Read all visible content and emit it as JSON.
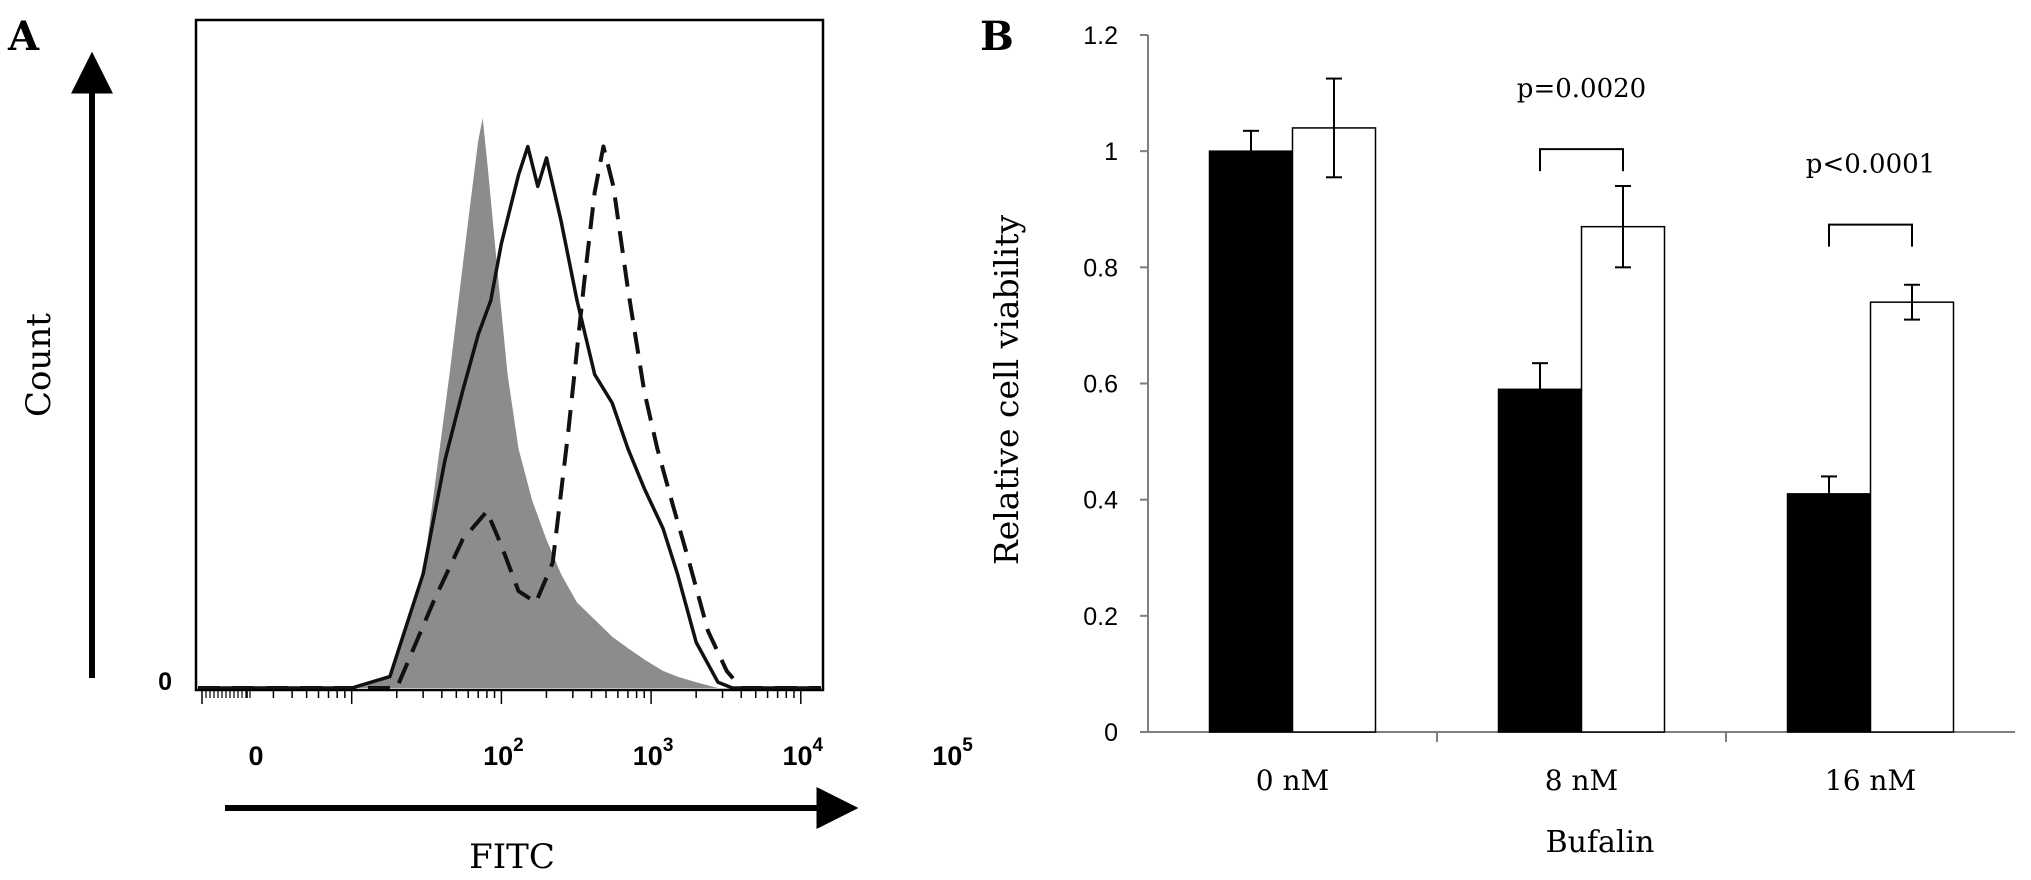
{
  "chart_data": [
    {
      "panel": "A",
      "type": "area",
      "xlabel": "FITC",
      "ylabel": "Count",
      "x_scale": "log",
      "x_ticks": [
        {
          "value": 1,
          "label": "0"
        },
        {
          "value": 100,
          "label": "10",
          "exp": "2"
        },
        {
          "value": 1000,
          "label": "10",
          "exp": "3"
        },
        {
          "value": 10000,
          "label": "10",
          "exp": "4"
        },
        {
          "value": 100000,
          "label": "10",
          "exp": "5"
        }
      ],
      "y_ticks": [
        {
          "value": 0,
          "label": "0"
        }
      ],
      "ylim": [
        0,
        1
      ],
      "series": [
        {
          "style": "filled-gray",
          "color": "#8c8c8c",
          "points": [
            [
              10,
              0
            ],
            [
              18,
              0.02
            ],
            [
              30,
              0.2
            ],
            [
              45,
              0.55
            ],
            [
              60,
              0.82
            ],
            [
              70,
              0.96
            ],
            [
              75,
              1.0
            ],
            [
              82,
              0.9
            ],
            [
              95,
              0.72
            ],
            [
              110,
              0.55
            ],
            [
              130,
              0.42
            ],
            [
              160,
              0.33
            ],
            [
              200,
              0.26
            ],
            [
              250,
              0.2
            ],
            [
              320,
              0.15
            ],
            [
              420,
              0.12
            ],
            [
              550,
              0.09
            ],
            [
              700,
              0.07
            ],
            [
              900,
              0.05
            ],
            [
              1200,
              0.03
            ],
            [
              1500,
              0.02
            ],
            [
              2000,
              0.01
            ],
            [
              2800,
              0
            ]
          ]
        },
        {
          "style": "solid-line",
          "color": "#111111",
          "points": [
            [
              10,
              0
            ],
            [
              18,
              0.02
            ],
            [
              30,
              0.2
            ],
            [
              42,
              0.4
            ],
            [
              55,
              0.52
            ],
            [
              70,
              0.62
            ],
            [
              85,
              0.68
            ],
            [
              100,
              0.78
            ],
            [
              130,
              0.9
            ],
            [
              150,
              0.95
            ],
            [
              175,
              0.88
            ],
            [
              200,
              0.93
            ],
            [
              250,
              0.82
            ],
            [
              320,
              0.68
            ],
            [
              420,
              0.55
            ],
            [
              550,
              0.5
            ],
            [
              700,
              0.42
            ],
            [
              900,
              0.35
            ],
            [
              1200,
              0.28
            ],
            [
              1500,
              0.2
            ],
            [
              2000,
              0.08
            ],
            [
              2800,
              0.01
            ],
            [
              3500,
              0
            ]
          ]
        },
        {
          "style": "dashed-line",
          "color": "#111111",
          "points": [
            [
              20,
              0
            ],
            [
              35,
              0.15
            ],
            [
              55,
              0.26
            ],
            [
              80,
              0.31
            ],
            [
              100,
              0.25
            ],
            [
              130,
              0.17
            ],
            [
              170,
              0.15
            ],
            [
              220,
              0.22
            ],
            [
              280,
              0.45
            ],
            [
              360,
              0.72
            ],
            [
              420,
              0.87
            ],
            [
              480,
              0.95
            ],
            [
              560,
              0.88
            ],
            [
              700,
              0.7
            ],
            [
              900,
              0.52
            ],
            [
              1100,
              0.42
            ],
            [
              1400,
              0.32
            ],
            [
              1800,
              0.22
            ],
            [
              2400,
              0.1
            ],
            [
              3200,
              0.03
            ],
            [
              4000,
              0
            ]
          ]
        }
      ]
    },
    {
      "panel": "B",
      "type": "bar",
      "categories": [
        "0 nM",
        "8 nM",
        "16 nM"
      ],
      "xlabel": "Bufalin",
      "ylabel": "Relative cell viability",
      "ylim": [
        0,
        1.2
      ],
      "y_ticks": [
        {
          "value": 0,
          "label": "0"
        },
        {
          "value": 0.2,
          "label": "0.2"
        },
        {
          "value": 0.4,
          "label": "0.4"
        },
        {
          "value": 0.6,
          "label": "0.6"
        },
        {
          "value": 0.8,
          "label": "0.8"
        },
        {
          "value": 1.0,
          "label": "1"
        },
        {
          "value": 1.2,
          "label": "1.2"
        }
      ],
      "series": [
        {
          "fill": "#000000",
          "values": [
            1.0,
            0.59,
            0.41
          ],
          "errors": [
            0.035,
            0.045,
            0.03
          ]
        },
        {
          "fill": "#ffffff",
          "values": [
            1.04,
            0.87,
            0.74
          ],
          "errors": [
            0.085,
            0.07,
            0.03
          ]
        }
      ],
      "annotations": [
        {
          "text": "p=0.0020",
          "category_index": 1,
          "bracket_height": 1.0
        },
        {
          "text": "p<0.0001",
          "category_index": 2,
          "bracket_height": 0.87
        }
      ]
    }
  ],
  "panel_labels": {
    "a": "A",
    "b": "B"
  }
}
